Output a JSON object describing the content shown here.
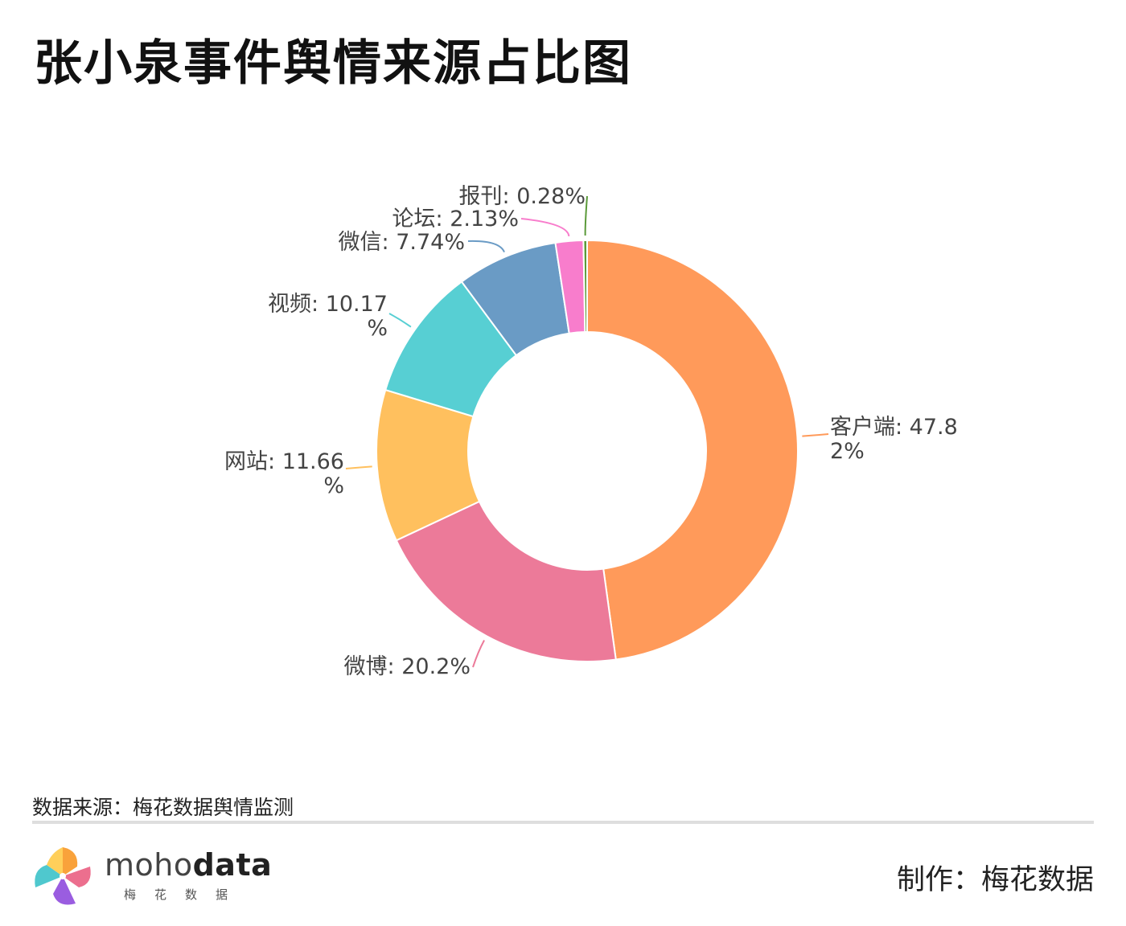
{
  "title": "张小泉事件舆情来源占比图",
  "source_text": "数据来源：梅花数据舆情监测",
  "credit_text": "制作：梅花数据",
  "logo": {
    "word_light": "moho",
    "word_bold": "data",
    "subtitle": "梅花数据"
  },
  "chart_data": {
    "type": "pie",
    "subtype": "donut",
    "title": "张小泉事件舆情来源占比图",
    "slices": [
      {
        "name": "客户端",
        "value": 47.82,
        "label": [
          "客户端: 47.8",
          "2%"
        ],
        "color": "#FF9A5A"
      },
      {
        "name": "微博",
        "value": 20.2,
        "label": [
          "微博: 20.2%"
        ],
        "color": "#EC7A99"
      },
      {
        "name": "网站",
        "value": 11.66,
        "label": [
          "网站: 11.66",
          "%"
        ],
        "color": "#FFC05E"
      },
      {
        "name": "视频",
        "value": 10.17,
        "label": [
          "视频: 10.17",
          "%"
        ],
        "color": "#57CFD3"
      },
      {
        "name": "微信",
        "value": 7.74,
        "label": [
          "微信: 7.74%"
        ],
        "color": "#6A9BC5"
      },
      {
        "name": "论坛",
        "value": 2.13,
        "label": [
          "论坛: 2.13%"
        ],
        "color": "#F87DCC"
      },
      {
        "name": "报刊",
        "value": 0.28,
        "label": [
          "报刊: 0.28%"
        ],
        "color": "#5B9A3A"
      }
    ]
  }
}
